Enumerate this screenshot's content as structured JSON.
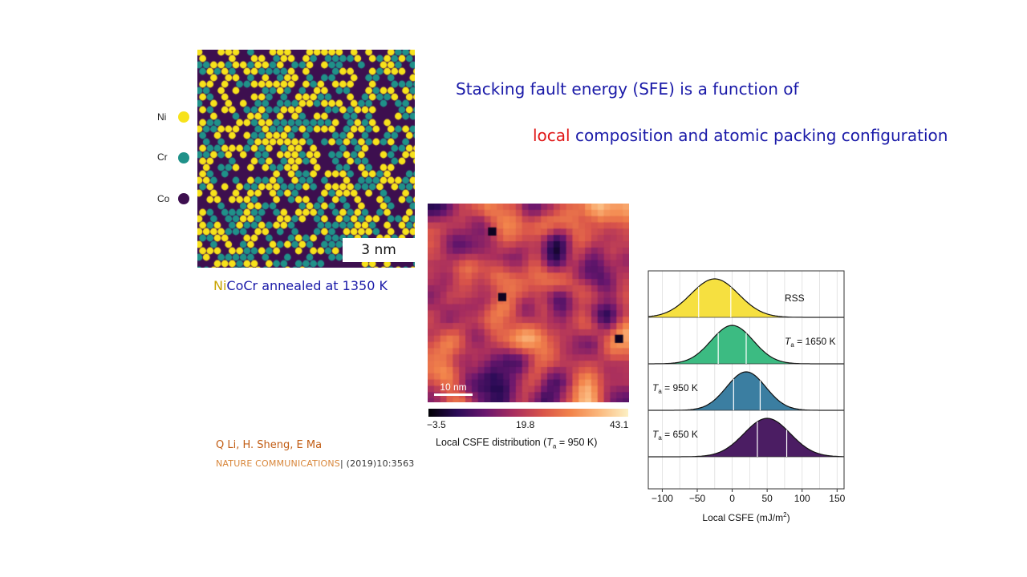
{
  "title": {
    "line1": "Stacking fault energy (SFE) is a function of",
    "line2_highlight": "local",
    "line2_rest": " composition and atomic packing configuration"
  },
  "atom_map": {
    "legend": [
      {
        "label": "Ni",
        "color": "#f7e21b"
      },
      {
        "label": "Cr",
        "color": "#1f9189"
      },
      {
        "label": "Co",
        "color": "#3d0f4f"
      }
    ],
    "scale_bar": "3 nm",
    "caption_ni": "Ni",
    "caption_rest": "CoCr annealed at 1350 K"
  },
  "heatmap": {
    "scale_bar": "10 nm",
    "colorbar_ticks": [
      "−3.5",
      "19.8",
      "43.1"
    ],
    "colorbar_label_pre": "Local CSFE distribution (",
    "colorbar_label_var": "T",
    "colorbar_label_sub": "a",
    "colorbar_label_post": " = 950 K)"
  },
  "citation": {
    "authors": "Q Li, H. Sheng, E Ma",
    "journal": "NATURE COMMUNICATIONS",
    "ref": "| (2019)10:3563"
  },
  "chart_data": {
    "type": "area",
    "title": "",
    "xlabel": "Local CSFE (mJ/m²)",
    "xlabel_main": "Local CSFE (mJ/m",
    "xlabel_sup": "2",
    "xlabel_end": ")",
    "xlim": [
      -120,
      160
    ],
    "xticks": [
      -100,
      -50,
      0,
      50,
      100,
      150
    ],
    "xtick_labels": [
      "−100",
      "−50",
      "0",
      "50",
      "100",
      "150"
    ],
    "series": [
      {
        "name": "RSS",
        "label_prefix": "",
        "label_sub": "",
        "label_text": "RSS",
        "mean": -25,
        "sd": 34,
        "quartiles": [
          -48,
          -2
        ],
        "color": "#f6e040"
      },
      {
        "name": "Ta = 1650 K",
        "label_prefix": "T",
        "label_sub": "a",
        "label_text": " = 1650 K",
        "mean": 0,
        "sd": 30,
        "quartiles": [
          -20,
          20
        ],
        "color": "#3cbb82"
      },
      {
        "name": "Ta = 950 K",
        "label_prefix": "T",
        "label_sub": "a",
        "label_text": " = 950 K",
        "mean": 20,
        "sd": 28,
        "quartiles": [
          2,
          40
        ],
        "color": "#3b7ea1"
      },
      {
        "name": "Ta = 650 K",
        "label_prefix": "T",
        "label_sub": "a",
        "label_text": " = 650 K",
        "mean": 50,
        "sd": 33,
        "quartiles": [
          36,
          78
        ],
        "color": "#4b1d63"
      }
    ]
  }
}
